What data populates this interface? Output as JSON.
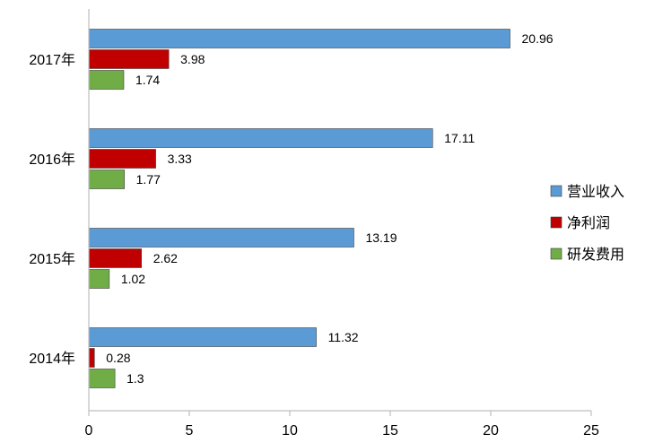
{
  "chart_data": {
    "type": "bar",
    "orientation": "horizontal",
    "categories": [
      "2014年",
      "2015年",
      "2016年",
      "2017年"
    ],
    "series": [
      {
        "name": "营业收入",
        "values": [
          11.32,
          13.19,
          17.11,
          20.96
        ],
        "color": "#5b9bd5"
      },
      {
        "name": "净利润",
        "values": [
          0.28,
          2.62,
          3.33,
          3.98
        ],
        "color": "#c00000"
      },
      {
        "name": "研发费用",
        "values": [
          1.3,
          1.02,
          1.77,
          1.74
        ],
        "color": "#70ad47"
      }
    ],
    "value_labels": [
      [
        "11.32",
        "13.19",
        "17.11",
        "20.96"
      ],
      [
        "0.28",
        "2.62",
        "3.33",
        "3.98"
      ],
      [
        "1.3",
        "1.02",
        "1.77",
        "1.74"
      ]
    ],
    "xlim": [
      0,
      25
    ],
    "xticks": [
      0,
      5,
      10,
      15,
      20,
      25
    ],
    "xtick_labels": [
      "0",
      "5",
      "10",
      "15",
      "20",
      "25"
    ],
    "title": "",
    "xlabel": "",
    "ylabel": "",
    "grid": false,
    "legend_position": "right"
  }
}
